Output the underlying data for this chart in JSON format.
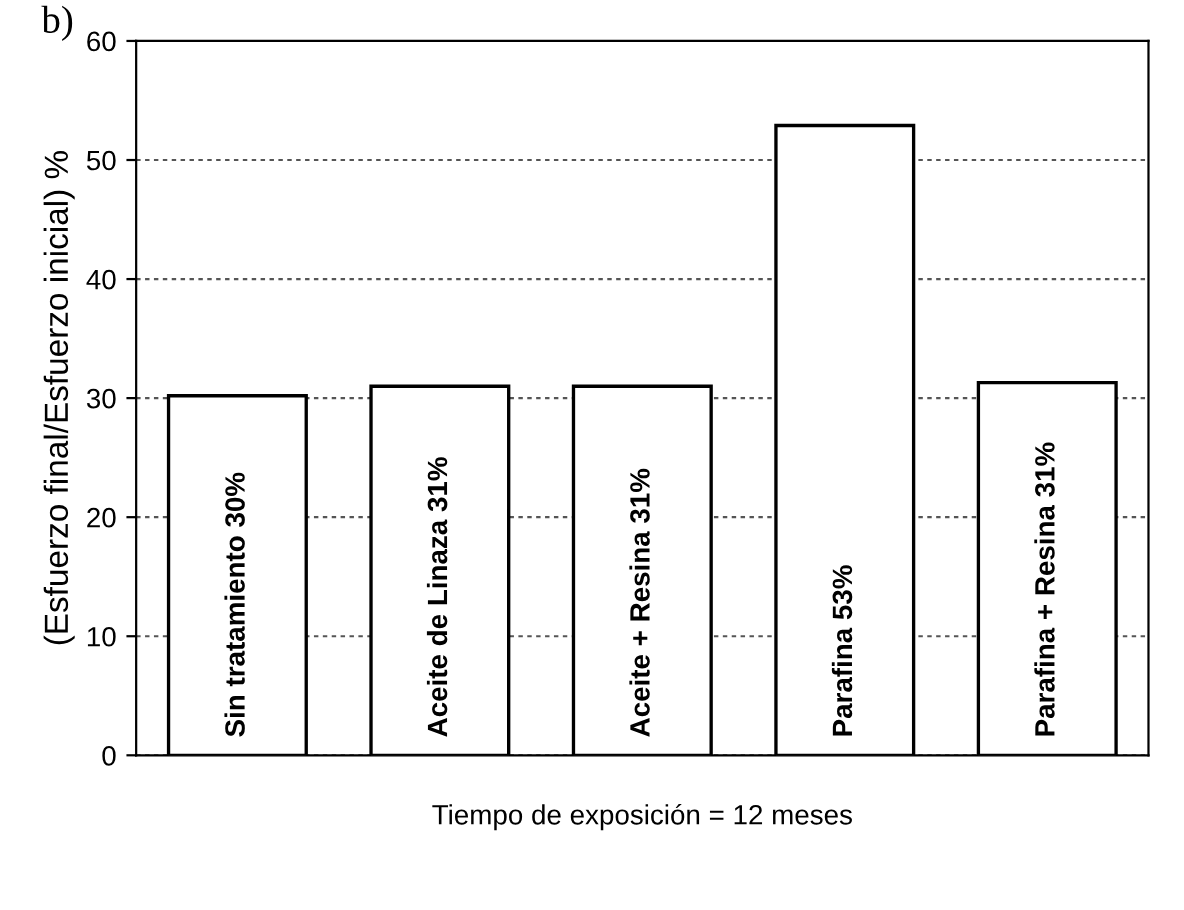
{
  "chart_data": {
    "type": "bar",
    "ylabel": "(Esfuerzo final/Esfuerzo inicial) %",
    "xlabel": "Tiempo de exposición = 12 meses",
    "annotations": [
      "b)"
    ],
    "categories": [
      null,
      null,
      null,
      null,
      null
    ],
    "values": [
      30.2,
      31,
      31,
      52.9,
      31.3
    ],
    "value_labels": [
      "Sin tratamiento 30%",
      "Aceite de Linaza 31%",
      "Aceite + Resina 31%",
      "Parafina 53%",
      "Parafina + Resina 31%"
    ],
    "color": "#ffffff",
    "ylim": [
      0,
      60
    ],
    "yticks": [
      0,
      10,
      20,
      30,
      40,
      50,
      60
    ],
    "grid": "y"
  }
}
